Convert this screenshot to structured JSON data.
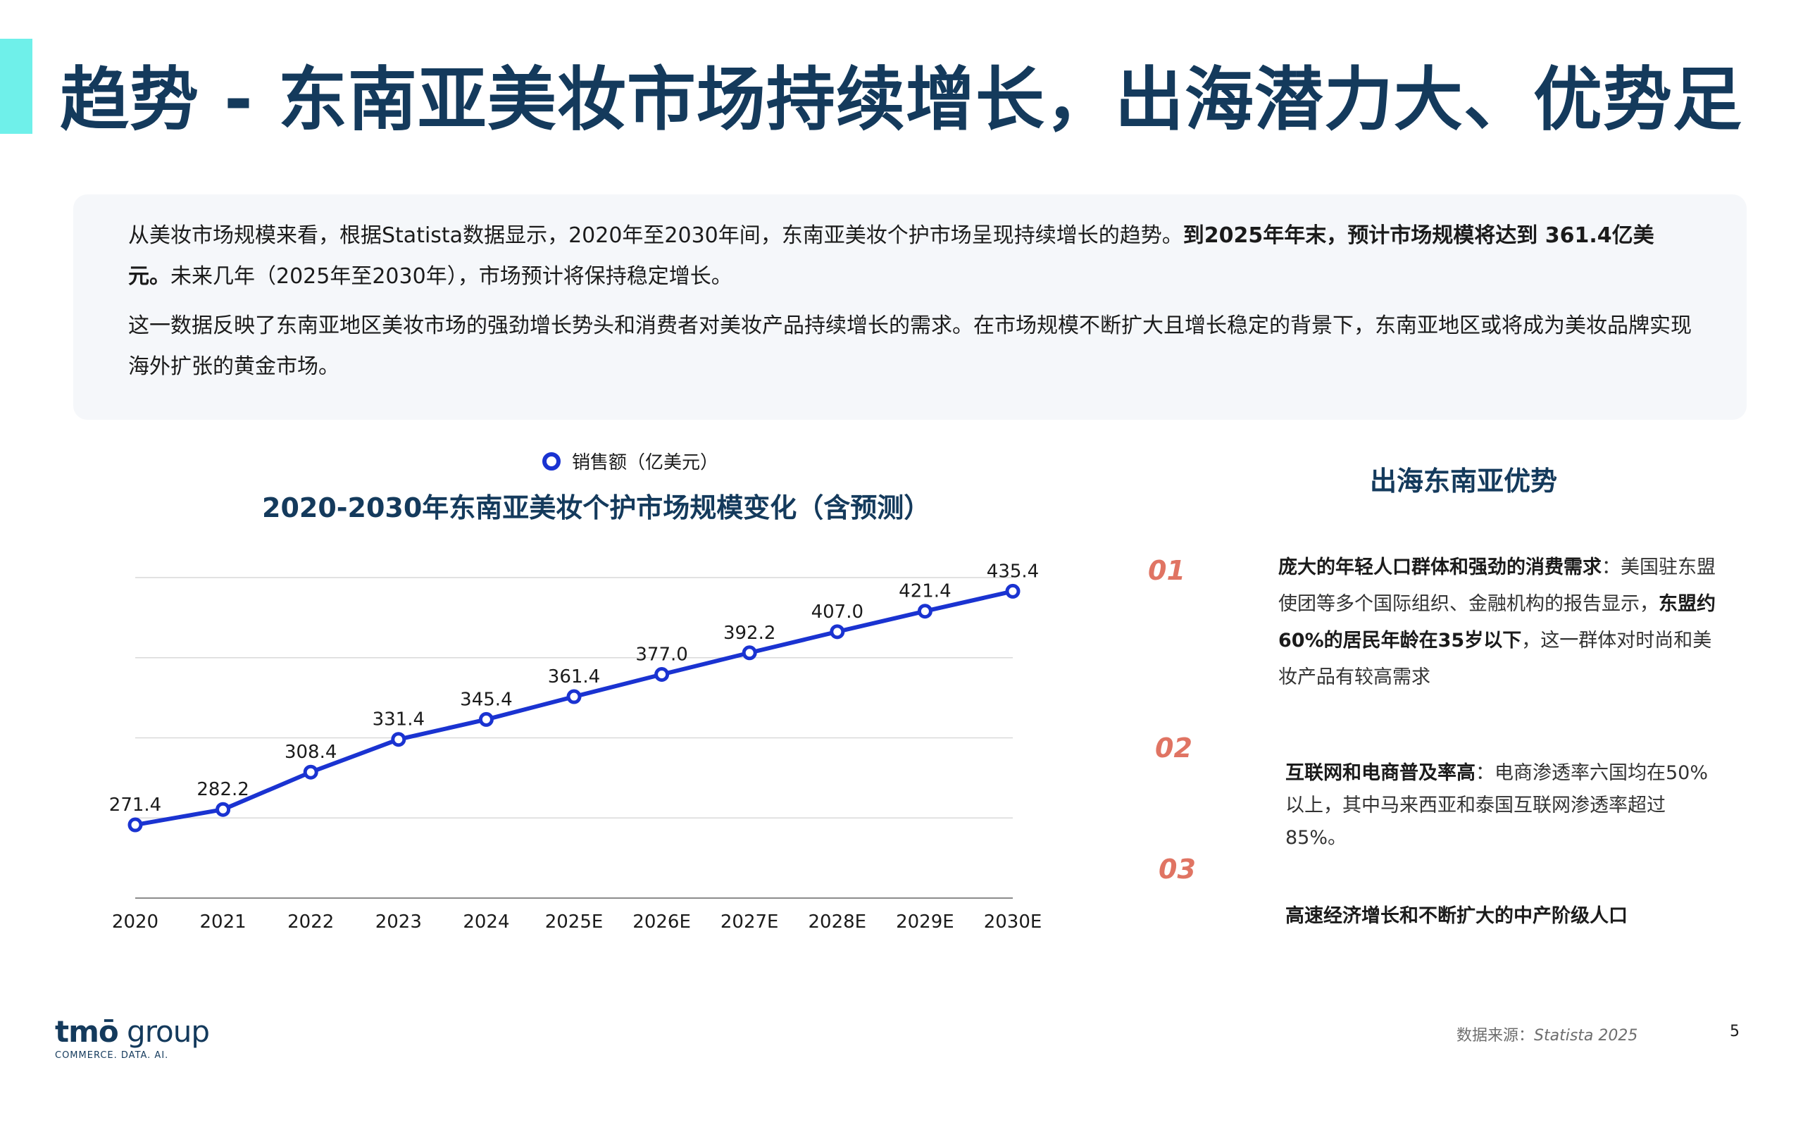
{
  "title": "趋势 - 东南亚美妆市场持续增长，出海潜力大、优势足",
  "summary": {
    "p1_a": "从美妆市场规模来看，根据Statista数据显示，2020年至2030年间，东南亚美妆个护市场呈现持续增长的趋势。",
    "p1_b": "到2025年年末，预计市场规模将达到 361.4亿美元。",
    "p1_c": "未来几年（2025年至2030年），市场预计将保持稳定增长。",
    "p2": "这一数据反映了东南亚地区美妆市场的强劲增长势头和消费者对美妆产品持续增长的需求。在市场规模不断扩大且增长稳定的背景下，东南亚地区或将成为美妆品牌实现海外扩张的黄金市场。"
  },
  "chart_data": {
    "type": "line",
    "title": "2020-2030年东南亚美妆个护市场规模变化（含预测）",
    "categories": [
      "2020",
      "2021",
      "2022",
      "2023",
      "2024",
      "2025E",
      "2026E",
      "2027E",
      "2028E",
      "2029E",
      "2030E"
    ],
    "series": [
      {
        "name": "销售额（亿美元）",
        "values": [
          271.4,
          282.2,
          308.4,
          331.4,
          345.4,
          361.4,
          377.0,
          392.2,
          407.0,
          421.4,
          435.4
        ],
        "labels": [
          "271.4",
          "282.2",
          "308.4",
          "331.4",
          "345.4",
          "361.4",
          "377.0",
          "392.2",
          "407.0",
          "421.4",
          "435.4"
        ],
        "color": "#1a33d1"
      }
    ],
    "ylim": [
      220,
      445
    ],
    "grid": true,
    "legend": "top-center"
  },
  "advantages": {
    "title": "出海东南亚优势",
    "items": [
      {
        "number": "01",
        "bold1": "庞大的年轻人口群体和强劲的消费需求",
        "text1": "：美国驻东盟使团等多个国际组织、金融机构的报告显示，",
        "bold2": "东盟约60%的居民年龄在35岁以下",
        "text2": "，这一群体对时尚和美妆产品有较高需求"
      },
      {
        "number": "02",
        "bold1": "互联网和电商普及率高",
        "text1": "：电商渗透率六国均在50%以上，其中马来西亚和泰国互联网渗透率超过85%。"
      },
      {
        "number": "03",
        "bold1": "高速经济增长和不断扩大的中产阶级人口"
      }
    ]
  },
  "logo": {
    "brand": "tmō",
    "group": " group",
    "tagline": "COMMERCE. DATA. AI."
  },
  "source": {
    "label": "数据来源：",
    "name": "Statista 2025"
  },
  "page_number": "5",
  "colors": {
    "title": "#143a5c",
    "accent_bar": "#6ff0ea",
    "line": "#1a33d1",
    "number": "#e07463"
  }
}
